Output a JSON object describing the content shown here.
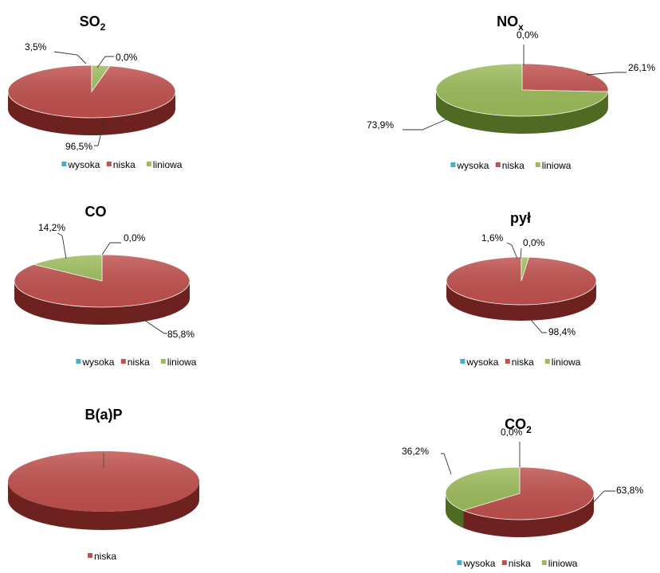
{
  "colors": {
    "wysoka": "#4bacc6",
    "niska": "#c0504d",
    "liniowa": "#9bbb59"
  },
  "chart_data": [
    {
      "type": "pie",
      "title_main": "SO",
      "title_sub": "2",
      "categories": [
        "wysoka",
        "niska",
        "liniowa"
      ],
      "values": [
        0.0,
        96.5,
        3.5
      ],
      "labels": [
        "0,0%",
        "96,5%",
        "3,5%"
      ],
      "legend": [
        "wysoka",
        "niska",
        "liniowa"
      ]
    },
    {
      "type": "pie",
      "title_main": "NO",
      "title_sub": "x",
      "categories": [
        "wysoka",
        "niska",
        "liniowa"
      ],
      "values": [
        0.0,
        26.1,
        73.9
      ],
      "labels": [
        "0,0%",
        "26,1%",
        "73,9%"
      ],
      "legend": [
        "wysoka",
        "niska",
        "liniowa"
      ]
    },
    {
      "type": "pie",
      "title_main": "CO",
      "title_sub": "",
      "categories": [
        "wysoka",
        "niska",
        "liniowa"
      ],
      "values": [
        0.0,
        85.8,
        14.2
      ],
      "labels": [
        "0,0%",
        "85,8%",
        "14,2%"
      ],
      "legend": [
        "wysoka",
        "niska",
        "liniowa"
      ]
    },
    {
      "type": "pie",
      "title_main": "pył",
      "title_sub": "",
      "categories": [
        "wysoka",
        "niska",
        "liniowa"
      ],
      "values": [
        0.0,
        98.4,
        1.6
      ],
      "labels": [
        "0,0%",
        "98,4%",
        "1,6%"
      ],
      "legend": [
        "wysoka",
        "niska",
        "liniowa"
      ]
    },
    {
      "type": "pie",
      "title_main": "B(a)P",
      "title_sub": "",
      "categories": [
        "niska"
      ],
      "values": [
        100.0
      ],
      "labels": [
        ""
      ],
      "legend": [
        "niska"
      ]
    },
    {
      "type": "pie",
      "title_main": "CO",
      "title_sub": "2",
      "categories": [
        "wysoka",
        "niska",
        "liniowa"
      ],
      "values": [
        0.0,
        63.8,
        36.2
      ],
      "labels": [
        "0,0%",
        "63,8%",
        "36,2%"
      ],
      "legend": [
        "wysoka",
        "niska",
        "liniowa"
      ]
    }
  ]
}
